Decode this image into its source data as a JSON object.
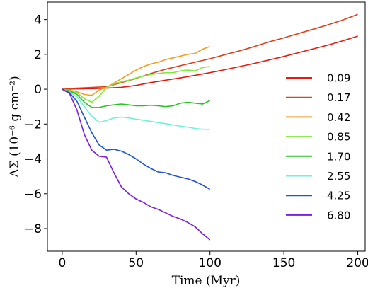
{
  "chart_data": {
    "type": "line",
    "xlabel": "Time (Myr)",
    "ylabel": "ΔΣ (10⁻⁶ g cm⁻²)",
    "xlim": [
      -10,
      205
    ],
    "ylim": [
      -9.3,
      5.0
    ],
    "xticks": [
      0,
      50,
      100,
      150,
      200
    ],
    "yticks": [
      4,
      2,
      0,
      -2,
      -4,
      -6,
      -8
    ],
    "grid": false,
    "legend_position": "right",
    "series": [
      {
        "name": "0.09",
        "color": "#e31b0e",
        "x": [
          0,
          10,
          20,
          30,
          40,
          50,
          60,
          70,
          80,
          90,
          100,
          110,
          120,
          130,
          140,
          150,
          160,
          170,
          180,
          190,
          200
        ],
        "y": [
          0,
          0.02,
          0.03,
          0.06,
          0.11,
          0.22,
          0.38,
          0.52,
          0.65,
          0.8,
          0.95,
          1.12,
          1.3,
          1.48,
          1.68,
          1.88,
          2.1,
          2.32,
          2.54,
          2.78,
          3.05
        ]
      },
      {
        "name": "0.17",
        "color": "#d8421c",
        "x": [
          0,
          10,
          20,
          30,
          40,
          50,
          60,
          70,
          80,
          90,
          100,
          110,
          120,
          130,
          140,
          150,
          160,
          170,
          180,
          190,
          200
        ],
        "y": [
          0,
          0.06,
          0.1,
          0.14,
          0.38,
          0.62,
          0.9,
          1.15,
          1.35,
          1.55,
          1.75,
          1.98,
          2.2,
          2.45,
          2.72,
          2.95,
          3.2,
          3.45,
          3.7,
          3.98,
          4.3
        ]
      },
      {
        "name": "0.42",
        "color": "#f0a020",
        "x": [
          0,
          5,
          10,
          15,
          20,
          25,
          30,
          35,
          40,
          45,
          50,
          55,
          60,
          65,
          70,
          75,
          80,
          85,
          90,
          95,
          100
        ],
        "y": [
          0,
          -0.05,
          -0.15,
          -0.3,
          -0.35,
          -0.05,
          0.1,
          0.35,
          0.6,
          0.85,
          1.1,
          1.3,
          1.45,
          1.55,
          1.7,
          1.8,
          1.9,
          2.0,
          2.05,
          2.3,
          2.45
        ]
      },
      {
        "name": "0.85",
        "color": "#7ee83a",
        "x": [
          0,
          5,
          10,
          15,
          20,
          25,
          30,
          35,
          40,
          45,
          50,
          55,
          60,
          65,
          70,
          75,
          80,
          85,
          90,
          95,
          100
        ],
        "y": [
          0,
          -0.08,
          -0.2,
          -0.55,
          -0.75,
          -0.4,
          0.1,
          0.3,
          0.42,
          0.52,
          0.65,
          0.75,
          0.85,
          0.9,
          0.95,
          0.95,
          1.05,
          1.1,
          1.05,
          1.25,
          1.3
        ]
      },
      {
        "name": "1.70",
        "color": "#24c41e",
        "x": [
          0,
          5,
          10,
          15,
          20,
          25,
          30,
          35,
          40,
          45,
          50,
          55,
          60,
          65,
          70,
          75,
          80,
          85,
          90,
          95,
          100
        ],
        "y": [
          0,
          -0.1,
          -0.3,
          -0.75,
          -1.05,
          -1.05,
          -0.95,
          -0.9,
          -0.85,
          -0.9,
          -0.95,
          -0.95,
          -0.92,
          -0.95,
          -1.0,
          -0.95,
          -0.8,
          -0.75,
          -0.8,
          -0.85,
          -0.65
        ]
      },
      {
        "name": "2.55",
        "color": "#70f0d8",
        "x": [
          0,
          5,
          10,
          15,
          20,
          25,
          30,
          35,
          40,
          45,
          50,
          55,
          60,
          65,
          70,
          75,
          80,
          85,
          90,
          95,
          100
        ],
        "y": [
          0,
          -0.15,
          -0.45,
          -1.0,
          -1.55,
          -1.9,
          -1.8,
          -1.65,
          -1.6,
          -1.65,
          -1.72,
          -1.78,
          -1.85,
          -1.92,
          -1.98,
          -2.05,
          -2.12,
          -2.18,
          -2.25,
          -2.3,
          -2.3
        ]
      },
      {
        "name": "4.25",
        "color": "#1f52d8",
        "x": [
          0,
          5,
          10,
          15,
          20,
          25,
          30,
          35,
          40,
          45,
          50,
          55,
          60,
          65,
          70,
          75,
          80,
          85,
          90,
          95,
          100
        ],
        "y": [
          0,
          -0.2,
          -0.7,
          -1.6,
          -2.5,
          -3.2,
          -3.5,
          -3.45,
          -3.55,
          -3.75,
          -4.0,
          -4.3,
          -4.55,
          -4.75,
          -4.8,
          -4.95,
          -5.05,
          -5.15,
          -5.3,
          -5.5,
          -5.75
        ]
      },
      {
        "name": "6.80",
        "color": "#7a1fd8",
        "x": [
          0,
          5,
          10,
          15,
          20,
          25,
          30,
          35,
          40,
          45,
          50,
          55,
          60,
          65,
          70,
          75,
          80,
          85,
          90,
          95,
          100
        ],
        "y": [
          0,
          -0.25,
          -1.2,
          -2.6,
          -3.5,
          -3.85,
          -3.9,
          -4.8,
          -5.6,
          -6.0,
          -6.3,
          -6.5,
          -6.75,
          -6.9,
          -7.1,
          -7.3,
          -7.45,
          -7.65,
          -7.9,
          -8.3,
          -8.65
        ]
      }
    ]
  }
}
